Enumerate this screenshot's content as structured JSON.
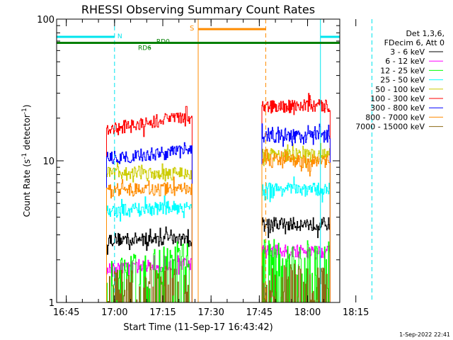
{
  "chart_data": {
    "type": "line",
    "title": "RHESSI Observing Summary Count Rates",
    "xlabel": "Start Time (11-Sep-17 16:43:42)",
    "ylabel": "Count Rate (s",
    "ylabel_sup": "-1",
    "ylabel_rest": " detector",
    "ylabel_close": ")",
    "yscale": "log",
    "ylim": [
      1,
      100
    ],
    "xlim_min": [
      -1.7,
      86.3
    ],
    "x_unit": "minutes after 16:43:42",
    "y_ticks": [
      {
        "value": 1,
        "label": "1"
      },
      {
        "value": 10,
        "label": "10"
      },
      {
        "value": 100,
        "label": "100"
      }
    ],
    "x_ticks": [
      {
        "t": 1.3,
        "label": "16:45"
      },
      {
        "t": 16.3,
        "label": "17:00"
      },
      {
        "t": 31.3,
        "label": "17:15"
      },
      {
        "t": 46.3,
        "label": "17:30"
      },
      {
        "t": 61.3,
        "label": "17:45"
      },
      {
        "t": 76.3,
        "label": "18:00"
      },
      {
        "t": 91.3,
        "label": "18:15"
      }
    ],
    "legend_header": [
      "Det 1,3,6,",
      "FDecim 6, Att 0"
    ],
    "series": [
      {
        "name": "3 - 6 keV",
        "color": "#000000",
        "start_level": 2.8,
        "end_level": 2.8,
        "post_level": 3.6
      },
      {
        "name": "6 - 12 keV",
        "color": "#ff00ff",
        "start_level": 1.7,
        "end_level": 1.9,
        "post_level": 2.3
      },
      {
        "name": "12 - 25 keV",
        "color": "#00ff00",
        "start_level": 1.0,
        "end_level": 1.5,
        "post_level": 1.5
      },
      {
        "name": "25 - 50 keV",
        "color": "#00ffff",
        "start_level": 4.4,
        "end_level": 4.8,
        "post_level": 6.3
      },
      {
        "name": "50 - 100 keV",
        "color": "#cccc00",
        "start_level": 8.2,
        "end_level": 8.2,
        "post_level": 11.0
      },
      {
        "name": "100 - 300 keV",
        "color": "#ff0000",
        "start_level": 16.5,
        "end_level": 21.0,
        "post_level": 24.5
      },
      {
        "name": "300 - 800 keV",
        "color": "#0000ff",
        "start_level": 10.5,
        "end_level": 11.8,
        "post_level": 15.0
      },
      {
        "name": "800 - 7000 keV",
        "color": "#ff8c00",
        "start_level": 6.3,
        "end_level": 6.3,
        "post_level": 10.0
      },
      {
        "name": "7000 - 15000 keV",
        "color": "#8b6914",
        "start_level": 1.0,
        "end_level": 1.0,
        "post_level": 1.0
      }
    ],
    "segments": [
      {
        "start": 13.8,
        "end": 40.4,
        "phase": "pre"
      },
      {
        "start": 62.1,
        "end": 83.3,
        "phase": "post"
      }
    ],
    "annotations": {
      "night": {
        "label": "N",
        "color": "#00e5ee",
        "y": 75,
        "intervals": [
          [
            -1.7,
            16.3
          ],
          [
            80.3,
            100
          ]
        ]
      },
      "saa": {
        "label": "S",
        "color": "#ff8c00",
        "y": 85,
        "intervals": [
          [
            42.3,
            63.3
          ]
        ]
      },
      "decimation": {
        "label_1": "RD6",
        "label_2": "RD0",
        "color": "#008000",
        "y": 68
      }
    },
    "vlines": [
      {
        "t": 16.3,
        "color": "#00e5ee",
        "style": "dashed"
      },
      {
        "t": 42.3,
        "color": "#ff8c00",
        "style": "solid"
      },
      {
        "t": 63.3,
        "color": "#ff8c00",
        "style": "dashed"
      },
      {
        "t": 80.3,
        "color": "#00e5ee",
        "style": "solid"
      },
      {
        "t": 96.3,
        "color": "#00e5ee",
        "style": "dashed"
      }
    ]
  },
  "footer_date": "1-Sep-2022 22:41"
}
